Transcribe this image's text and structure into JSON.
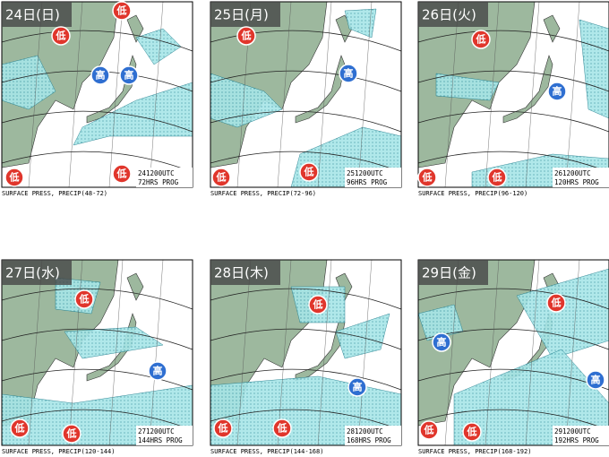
{
  "panels": [
    {
      "date": "24日(日)",
      "stamp": "241200UTC",
      "prog": "72HRS PROG",
      "caption": "SURFACE PRESS, PRECIP(48-72)",
      "markers": [
        "低",
        "低",
        "高",
        "高",
        "低",
        "低"
      ]
    },
    {
      "date": "25日(月)",
      "stamp": "251200UTC",
      "prog": "96HRS PROG",
      "caption": "SURFACE PRESS, PRECIP(72-96)",
      "markers": [
        "低",
        "高",
        "低",
        "低"
      ]
    },
    {
      "date": "26日(火)",
      "stamp": "261200UTC",
      "prog": "120HRS PROG",
      "caption": "SURFACE PRESS, PRECIP(96-120)",
      "markers": [
        "低",
        "高",
        "低",
        "低"
      ]
    },
    {
      "date": "27日(水)",
      "stamp": "271200UTC",
      "prog": "144HRS PROG",
      "caption": "SURFACE PRESS, PRECIP(120-144)",
      "markers": [
        "低",
        "高",
        "低",
        "低"
      ]
    },
    {
      "date": "28日(木)",
      "stamp": "281200UTC",
      "prog": "168HRS PROG",
      "caption": "SURFACE PRESS, PRECIP(144-168)",
      "markers": [
        "低",
        "高",
        "低",
        "低"
      ]
    },
    {
      "date": "29日(金)",
      "stamp": "291200UTC",
      "prog": "192HRS PROG",
      "caption": "SURFACE PRESS, PRECIP(168-192)",
      "markers": [
        "低",
        "高",
        "高",
        "低",
        "低"
      ]
    }
  ]
}
